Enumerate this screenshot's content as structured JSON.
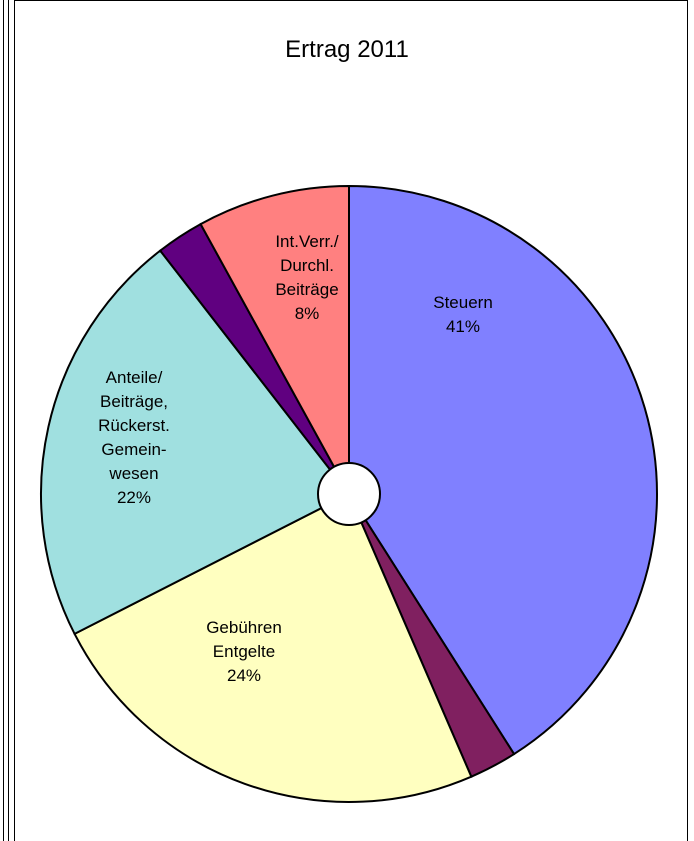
{
  "chart_data": {
    "type": "pie",
    "title": "Ertrag 2011",
    "categories": [
      "Steuern",
      null,
      "Gebühren\nEntgelte",
      "Anteile/\nBeiträge,\nRückerst.\nGemein-\nwesen",
      null,
      "Int.Verr./\nDurchl.\nBeiträge"
    ],
    "values": [
      41,
      2.5,
      24,
      22,
      2.5,
      8
    ],
    "value_labels": [
      "41%",
      null,
      "24%",
      "22%",
      null,
      "8%"
    ],
    "colors": [
      "#8080ff",
      "#802060",
      "#ffffc0",
      "#a0e0e0",
      "#600080",
      "#ff8080"
    ]
  }
}
